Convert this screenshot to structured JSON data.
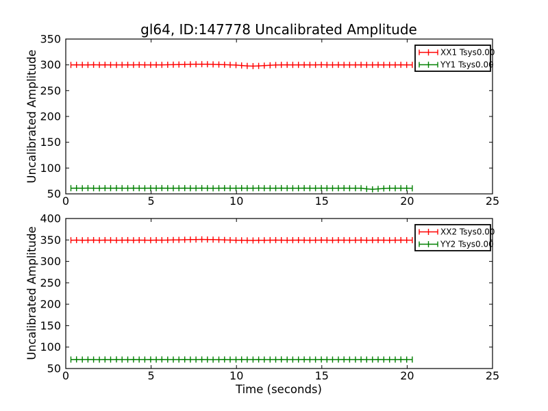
{
  "figure": {
    "title": "gl64, ID:147778 Uncalibrated Amplitude",
    "background": "#ffffff",
    "axis_color": "#000000"
  },
  "colors": {
    "xx": "#ff0000",
    "yy": "#007f00"
  },
  "chart_data": [
    {
      "type": "line",
      "subplot": "top",
      "ylabel": "Uncalibrated Amplitude",
      "xlabel": "",
      "xlim": [
        0,
        25
      ],
      "ylim": [
        50,
        350
      ],
      "xticks": [
        0,
        5,
        10,
        15,
        20,
        25
      ],
      "yticks": [
        50,
        100,
        150,
        200,
        250,
        300,
        350
      ],
      "grid": false,
      "legend": {
        "position": "upper right",
        "entries": [
          {
            "label": "XX1 Tsys0.00",
            "color": "#ff0000"
          },
          {
            "label": "YY1 Tsys0.00",
            "color": "#007f00"
          }
        ]
      },
      "x": [
        0.3,
        0.63,
        0.97,
        1.3,
        1.63,
        1.97,
        2.3,
        2.63,
        2.97,
        3.3,
        3.63,
        3.97,
        4.3,
        4.63,
        4.97,
        5.3,
        5.63,
        5.97,
        6.3,
        6.63,
        6.97,
        7.3,
        7.63,
        7.97,
        8.3,
        8.63,
        8.97,
        9.3,
        9.63,
        9.97,
        10.3,
        10.63,
        10.97,
        11.3,
        11.63,
        11.97,
        12.3,
        12.63,
        12.97,
        13.3,
        13.63,
        13.97,
        14.3,
        14.63,
        14.97,
        15.3,
        15.63,
        15.97,
        16.3,
        16.63,
        16.97,
        17.3,
        17.63,
        17.97,
        18.3,
        18.63,
        18.97,
        19.3,
        19.63,
        19.97,
        20.3
      ],
      "series": [
        {
          "name": "XX1 Tsys0.00",
          "color": "#ff0000",
          "values": [
            299.8,
            300.1,
            299.9,
            300.0,
            300.2,
            299.9,
            300.1,
            300.0,
            299.8,
            300.0,
            300.1,
            299.9,
            300.2,
            300.0,
            299.9,
            300.1,
            300.0,
            300.2,
            300.4,
            300.6,
            300.8,
            301.0,
            301.2,
            301.3,
            301.1,
            300.9,
            300.6,
            300.3,
            300.0,
            299.5,
            298.8,
            298.0,
            297.6,
            297.9,
            298.5,
            299.2,
            299.7,
            300.0,
            300.1,
            299.9,
            300.0,
            300.1,
            299.9,
            300.0,
            300.2,
            300.0,
            299.9,
            300.1,
            300.0,
            299.9,
            300.0,
            300.1,
            299.9,
            300.0,
            300.1,
            300.0,
            299.9,
            300.0,
            300.1,
            300.0,
            300.0
          ]
        },
        {
          "name": "YY1 Tsys0.00",
          "color": "#007f00",
          "values": [
            61.0,
            61.2,
            60.9,
            61.1,
            61.0,
            60.8,
            61.1,
            61.0,
            61.2,
            61.0,
            60.9,
            61.1,
            61.0,
            60.9,
            61.1,
            61.0,
            61.2,
            61.0,
            60.9,
            61.0,
            61.1,
            60.9,
            61.0,
            61.1,
            61.0,
            60.8,
            61.0,
            61.1,
            60.9,
            61.0,
            61.1,
            61.0,
            60.9,
            61.1,
            61.0,
            60.9,
            61.0,
            61.2,
            61.0,
            60.9,
            61.0,
            61.1,
            60.9,
            61.0,
            61.1,
            61.0,
            60.9,
            61.0,
            61.1,
            60.9,
            61.0,
            61.0,
            59.5,
            58.8,
            59.6,
            60.5,
            61.0,
            60.9,
            61.0,
            61.0,
            60.8
          ]
        }
      ]
    },
    {
      "type": "line",
      "subplot": "bottom",
      "ylabel": "Uncalibrated Amplitude",
      "xlabel": "Time (seconds)",
      "xlim": [
        0,
        25
      ],
      "ylim": [
        50,
        400
      ],
      "xticks": [
        0,
        5,
        10,
        15,
        20,
        25
      ],
      "yticks": [
        50,
        100,
        150,
        200,
        250,
        300,
        350,
        400
      ],
      "grid": false,
      "legend": {
        "position": "upper right",
        "entries": [
          {
            "label": "XX2 Tsys0.00",
            "color": "#ff0000"
          },
          {
            "label": "YY2 Tsys0.00",
            "color": "#007f00"
          }
        ]
      },
      "x": [
        0.3,
        0.63,
        0.97,
        1.3,
        1.63,
        1.97,
        2.3,
        2.63,
        2.97,
        3.3,
        3.63,
        3.97,
        4.3,
        4.63,
        4.97,
        5.3,
        5.63,
        5.97,
        6.3,
        6.63,
        6.97,
        7.3,
        7.63,
        7.97,
        8.3,
        8.63,
        8.97,
        9.3,
        9.63,
        9.97,
        10.3,
        10.63,
        10.97,
        11.3,
        11.63,
        11.97,
        12.3,
        12.63,
        12.97,
        13.3,
        13.63,
        13.97,
        14.3,
        14.63,
        14.97,
        15.3,
        15.63,
        15.97,
        16.3,
        16.63,
        16.97,
        17.3,
        17.63,
        17.97,
        18.3,
        18.63,
        18.97,
        19.3,
        19.63,
        19.97,
        20.3
      ],
      "series": [
        {
          "name": "XX2 Tsys0.00",
          "color": "#ff0000",
          "values": [
            349.3,
            349.6,
            349.4,
            349.5,
            349.7,
            349.4,
            349.6,
            349.5,
            349.3,
            349.5,
            349.6,
            349.4,
            349.7,
            349.5,
            349.4,
            349.6,
            349.5,
            349.7,
            349.9,
            350.2,
            350.5,
            350.8,
            351.0,
            351.2,
            351.0,
            350.7,
            350.4,
            350.0,
            349.7,
            349.4,
            349.2,
            349.0,
            348.9,
            349.1,
            349.3,
            349.5,
            349.6,
            349.5,
            349.4,
            349.5,
            349.6,
            349.5,
            349.4,
            349.5,
            349.6,
            349.5,
            349.4,
            349.6,
            349.5,
            349.4,
            349.5,
            349.6,
            349.4,
            349.5,
            349.6,
            349.5,
            349.4,
            349.5,
            349.6,
            349.5,
            349.5
          ]
        },
        {
          "name": "YY2 Tsys0.00",
          "color": "#007f00",
          "values": [
            71.0,
            71.2,
            70.9,
            71.1,
            71.0,
            70.8,
            71.1,
            71.0,
            71.2,
            71.0,
            70.9,
            71.1,
            71.0,
            70.9,
            71.1,
            71.0,
            71.2,
            71.0,
            70.9,
            71.0,
            71.1,
            70.9,
            71.0,
            71.1,
            71.0,
            70.8,
            71.0,
            71.1,
            70.9,
            71.0,
            71.1,
            71.0,
            70.9,
            71.1,
            71.0,
            70.9,
            71.0,
            71.2,
            71.0,
            70.9,
            71.0,
            71.1,
            70.9,
            71.0,
            71.1,
            71.0,
            70.9,
            71.0,
            71.1,
            70.9,
            71.0,
            71.1,
            70.9,
            71.0,
            71.1,
            71.0,
            70.9,
            71.0,
            71.1,
            71.0,
            71.0
          ]
        }
      ]
    }
  ]
}
